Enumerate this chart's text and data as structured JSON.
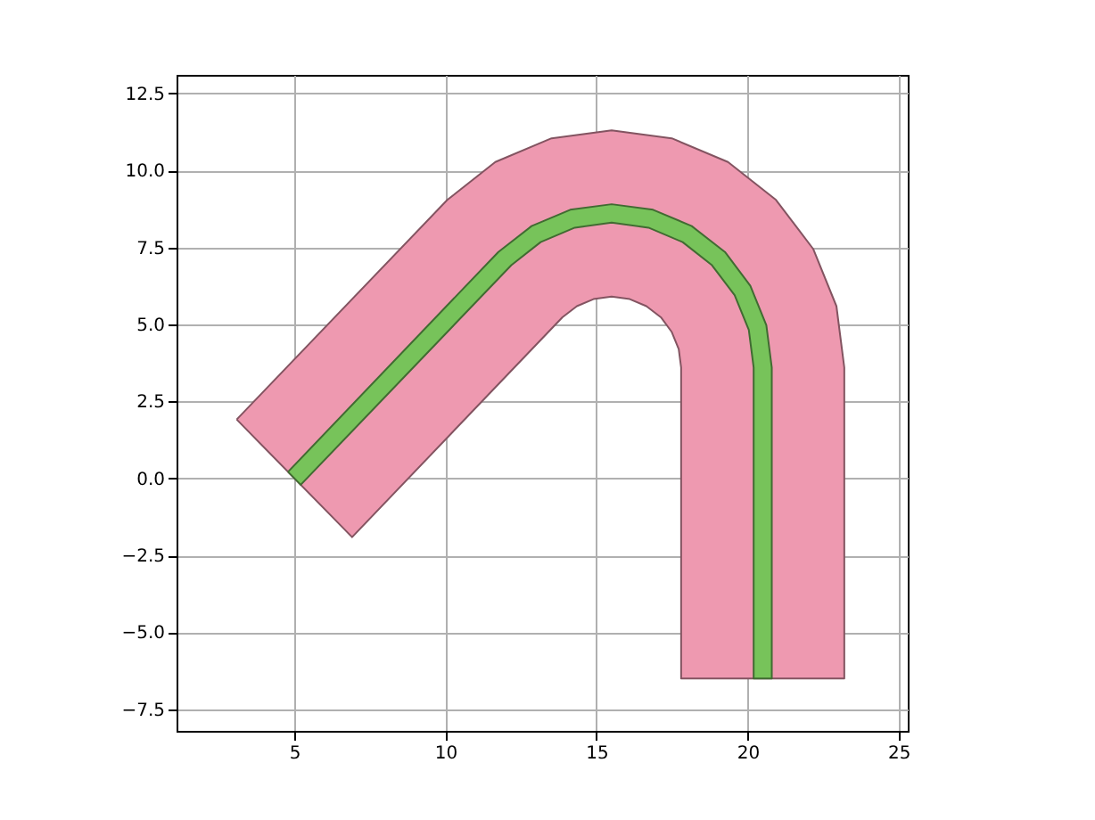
{
  "chart_data": {
    "type": "area",
    "grid": true,
    "xlim": [
      1.1,
      25.3
    ],
    "ylim": [
      -8.2,
      13.1
    ],
    "xticks": [
      5,
      10,
      15,
      20,
      25
    ],
    "yticks": [
      -7.5,
      {
        "value": -5,
        "label": "−5.0"
      },
      -2.5,
      {
        "value": 0,
        "label": "0.0"
      },
      2.5,
      {
        "value": 5,
        "label": "5.0"
      },
      7.5,
      {
        "value": 10,
        "label": "10.0"
      },
      12.5
    ],
    "series": [
      {
        "color": "#ee99b0",
        "x": [
          3.09,
          10.06,
          11.65,
          13.51,
          15.5,
          17.49,
          19.35,
          20.94,
          22.17,
          22.94,
          23.2,
          23.2,
          17.8,
          17.8,
          17.72,
          17.49,
          17.13,
          16.65,
          16.1,
          15.5,
          14.9,
          14.35,
          13.87,
          6.91,
          3.09
        ],
        "values": [
          1.91,
          9.04,
          10.27,
          11.04,
          11.3,
          11.04,
          10.27,
          9.04,
          7.45,
          5.59,
          3.6,
          -6.5,
          -6.5,
          3.6,
          4.2,
          4.75,
          5.23,
          5.59,
          5.82,
          5.9,
          5.82,
          5.59,
          5.23,
          -1.91,
          1.91
        ]
      },
      {
        "color": "#77c35a",
        "x": [
          4.79,
          11.75,
          12.85,
          14.13,
          15.5,
          16.87,
          18.15,
          19.25,
          20.09,
          20.62,
          20.8,
          20.8,
          20.2,
          20.2,
          20.04,
          19.57,
          18.82,
          17.85,
          16.72,
          15.5,
          14.28,
          13.15,
          12.18,
          5.21,
          4.79
        ],
        "values": [
          0.21,
          7.35,
          8.19,
          8.72,
          8.9,
          8.72,
          8.19,
          7.35,
          6.25,
          4.97,
          3.6,
          -6.5,
          -6.5,
          3.6,
          4.82,
          5.95,
          6.92,
          7.67,
          8.14,
          8.3,
          8.14,
          7.67,
          6.92,
          -0.21,
          0.21
        ]
      }
    ]
  }
}
